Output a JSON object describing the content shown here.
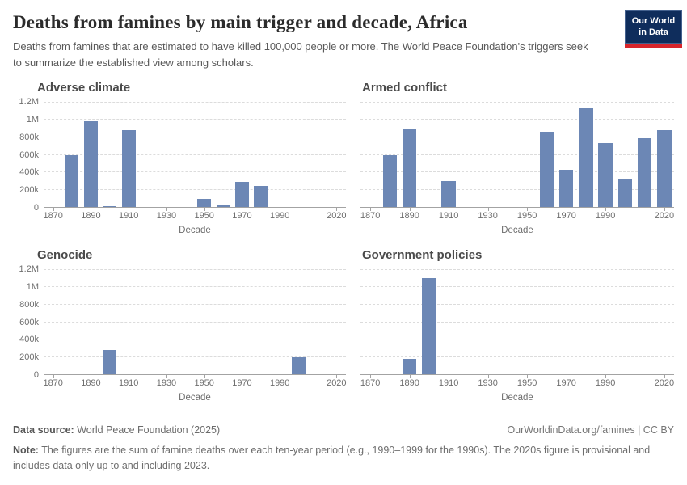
{
  "header": {
    "title": "Deaths from famines by main trigger and decade, Africa",
    "subtitle": "Deaths from famines that are estimated to have killed 100,000 people or more. The World Peace Foundation's triggers seek to summarize the established view among scholars.",
    "logo": {
      "line1": "Our World",
      "line2": "in Data"
    }
  },
  "axis": {
    "xlabel": "Decade",
    "yticks": [
      {
        "value": 0,
        "label": "0"
      },
      {
        "value": 200000,
        "label": "200k"
      },
      {
        "value": 400000,
        "label": "400k"
      },
      {
        "value": 600000,
        "label": "600k"
      },
      {
        "value": 800000,
        "label": "800k"
      },
      {
        "value": 1000000,
        "label": "1M"
      },
      {
        "value": 1200000,
        "label": "1.2M"
      }
    ],
    "xticks": [
      {
        "index": 0,
        "label": "1870"
      },
      {
        "index": 2,
        "label": "1890"
      },
      {
        "index": 4,
        "label": "1910"
      },
      {
        "index": 6,
        "label": "1930"
      },
      {
        "index": 8,
        "label": "1950"
      },
      {
        "index": 10,
        "label": "1970"
      },
      {
        "index": 12,
        "label": "1990"
      },
      {
        "index": 15,
        "label": "2020"
      }
    ]
  },
  "chart_data": [
    {
      "type": "bar",
      "title": "Adverse climate",
      "xlabel": "Decade",
      "ylabel": "",
      "ylim": [
        0,
        1200000
      ],
      "grid": true,
      "categories": [
        "1870",
        "1880",
        "1890",
        "1900",
        "1910",
        "1920",
        "1930",
        "1940",
        "1950",
        "1960",
        "1970",
        "1980",
        "1990",
        "2000",
        "2010",
        "2020"
      ],
      "values": [
        0,
        600000,
        980000,
        20000,
        880000,
        0,
        0,
        0,
        100000,
        30000,
        290000,
        245000,
        0,
        0,
        0,
        0
      ]
    },
    {
      "type": "bar",
      "title": "Armed conflict",
      "xlabel": "Decade",
      "ylabel": "",
      "ylim": [
        0,
        1200000
      ],
      "grid": true,
      "categories": [
        "1870",
        "1880",
        "1890",
        "1900",
        "1910",
        "1920",
        "1930",
        "1940",
        "1950",
        "1960",
        "1970",
        "1980",
        "1990",
        "2000",
        "2010",
        "2020"
      ],
      "values": [
        0,
        600000,
        900000,
        0,
        300000,
        0,
        0,
        0,
        0,
        860000,
        430000,
        1140000,
        730000,
        330000,
        790000,
        880000
      ]
    },
    {
      "type": "bar",
      "title": "Genocide",
      "xlabel": "Decade",
      "ylabel": "",
      "ylim": [
        0,
        1200000
      ],
      "grid": true,
      "categories": [
        "1870",
        "1880",
        "1890",
        "1900",
        "1910",
        "1920",
        "1930",
        "1940",
        "1950",
        "1960",
        "1970",
        "1980",
        "1990",
        "2000",
        "2010",
        "2020"
      ],
      "values": [
        0,
        0,
        0,
        280000,
        0,
        0,
        0,
        0,
        0,
        0,
        0,
        0,
        0,
        200000,
        0,
        0
      ]
    },
    {
      "type": "bar",
      "title": "Government policies",
      "xlabel": "Decade",
      "ylabel": "",
      "ylim": [
        0,
        1200000
      ],
      "grid": true,
      "categories": [
        "1870",
        "1880",
        "1890",
        "1900",
        "1910",
        "1920",
        "1930",
        "1940",
        "1950",
        "1960",
        "1970",
        "1980",
        "1990",
        "2000",
        "2010",
        "2020"
      ],
      "values": [
        0,
        0,
        180000,
        1100000,
        0,
        0,
        0,
        0,
        0,
        0,
        0,
        0,
        0,
        0,
        0,
        0
      ]
    }
  ],
  "colors": {
    "bar": "#6c87b5",
    "gridline": "#dcdcdc",
    "axis_line": "#a3a3a3",
    "logo_bg": "#0f2d5c",
    "logo_stripe": "#d8252b"
  },
  "footer": {
    "source_label": "Data source:",
    "source": " World Peace Foundation (2025)",
    "license": "OurWorldinData.org/famines | CC BY",
    "note_label": "Note:",
    "note": " The figures are the sum of famine deaths over each ten-year period (e.g., 1990–1999 for the 1990s). The 2020s figure is provisional and includes data only up to and including 2023."
  }
}
